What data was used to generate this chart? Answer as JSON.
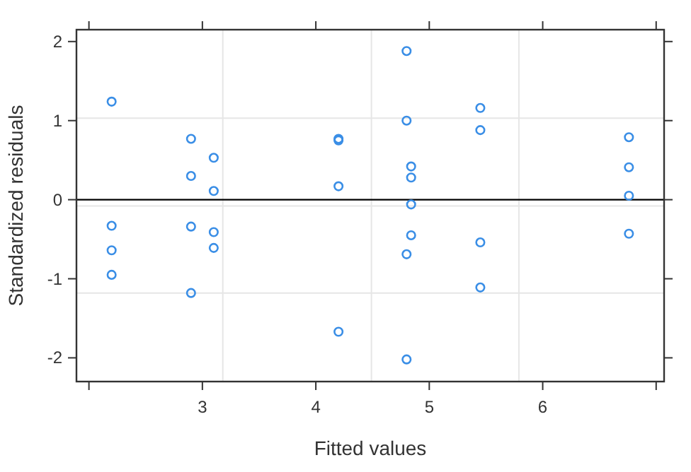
{
  "chart_data": {
    "type": "scatter",
    "xlabel": "Fitted values",
    "ylabel": "Standardized residuals",
    "xlim": [
      1.89,
      7.07
    ],
    "ylim": [
      -2.3,
      2.15
    ],
    "xticks": [
      {
        "value": 2,
        "label": null
      },
      3,
      4,
      5,
      6,
      {
        "value": 7,
        "label": null
      }
    ],
    "yticks": [
      -2,
      -1,
      0,
      1,
      2
    ],
    "marker": "circle",
    "grid": false,
    "ref_lines": [
      {
        "axis": "y",
        "value": 0,
        "color": "#000000"
      },
      {
        "axis": "x",
        "value": 3.18,
        "color": "#e6e6e6"
      },
      {
        "axis": "x",
        "value": 4.49,
        "color": "#e6e6e6"
      },
      {
        "axis": "x",
        "value": 5.79,
        "color": "#e6e6e6"
      },
      {
        "axis": "y",
        "value": 1.03,
        "color": "#e6e6e6"
      },
      {
        "axis": "y",
        "value": -0.08,
        "color": "#e6e6e6"
      },
      {
        "axis": "y",
        "value": -1.18,
        "color": "#e6e6e6"
      }
    ],
    "series": [
      {
        "color": "#3a8ee6",
        "x": [
          2.2,
          2.2,
          2.2,
          2.2,
          2.9,
          2.9,
          2.9,
          2.9,
          3.1,
          3.1,
          3.1,
          3.1,
          4.2,
          4.2,
          4.2,
          4.2,
          4.8,
          4.8,
          4.8,
          4.8,
          4.84,
          4.84,
          4.84,
          4.84,
          5.45,
          5.45,
          5.45,
          5.45,
          6.76,
          6.76,
          6.76,
          6.76
        ],
        "values": [
          1.24,
          -0.33,
          -0.64,
          -0.95,
          0.77,
          0.3,
          -0.34,
          -1.18,
          0.53,
          0.11,
          -0.41,
          -0.61,
          0.77,
          0.75,
          0.17,
          -1.67,
          1.88,
          1.0,
          -0.69,
          -2.02,
          0.42,
          0.28,
          -0.06,
          -0.45,
          1.16,
          0.88,
          -0.54,
          -1.11,
          0.79,
          0.41,
          0.05,
          -0.43
        ]
      }
    ]
  }
}
